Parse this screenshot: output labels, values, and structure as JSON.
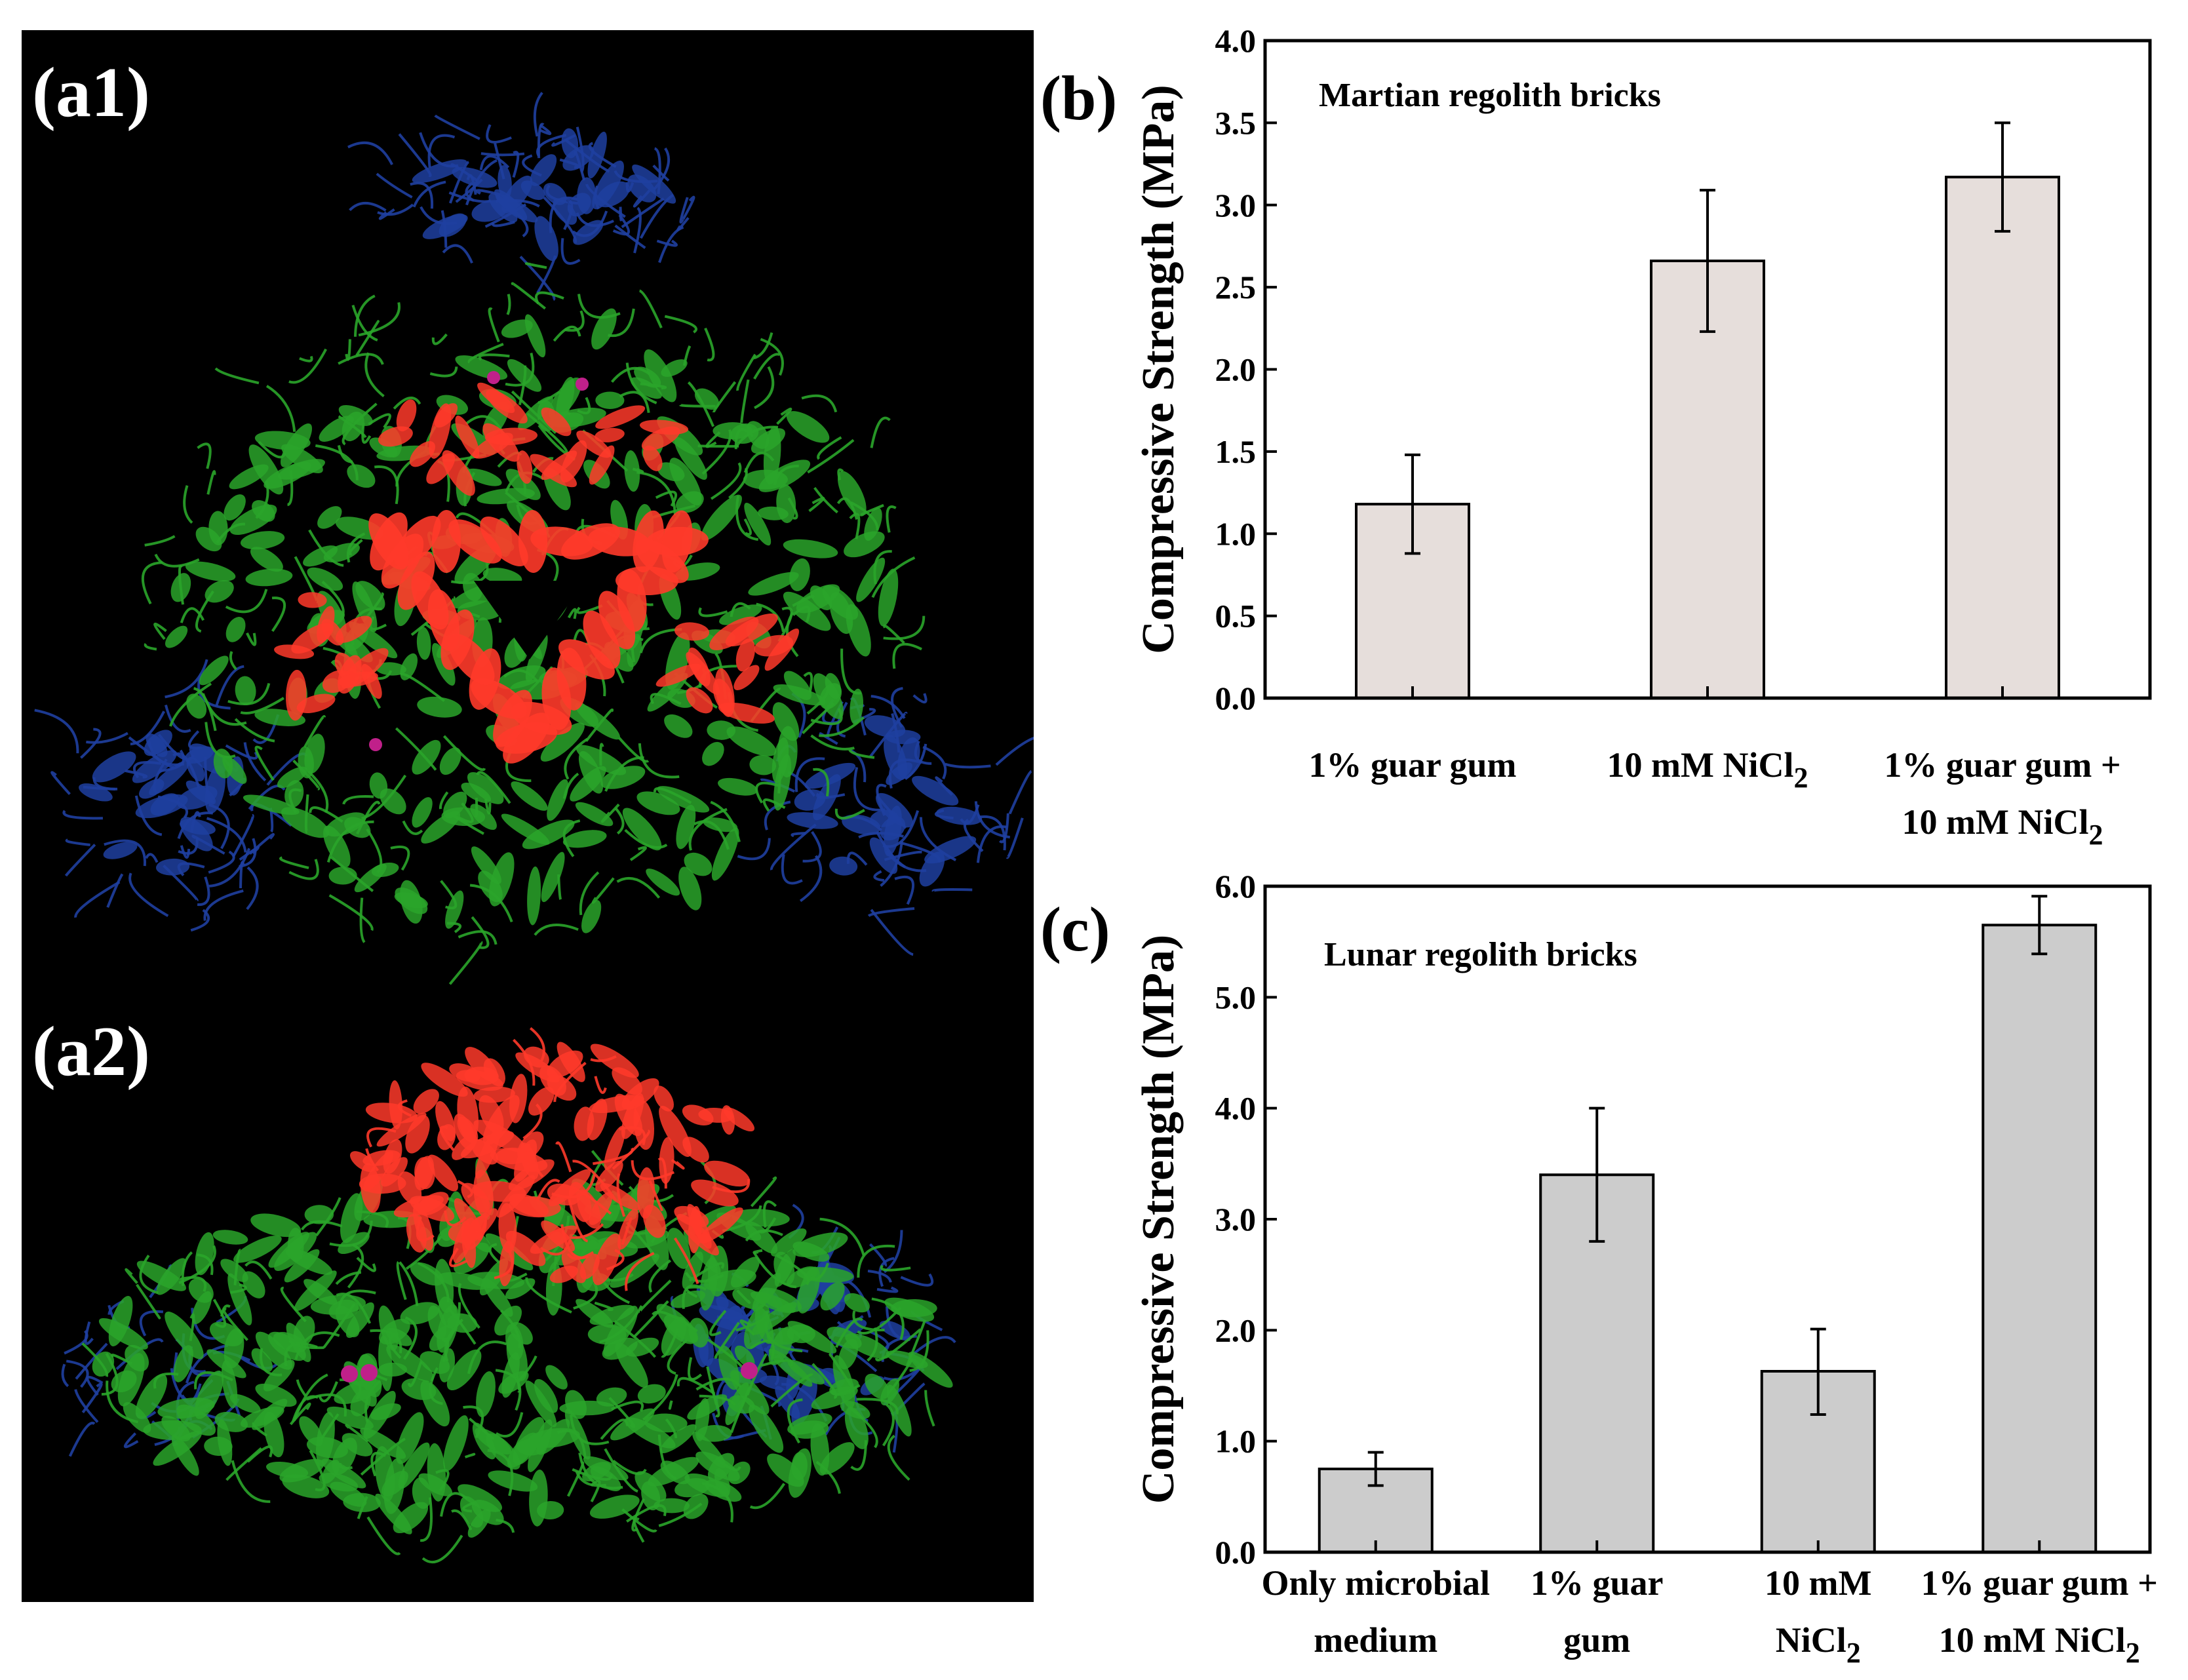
{
  "panels": {
    "a1": "(a1)",
    "a2": "(a2)",
    "b": "(b)",
    "c": "(c)"
  },
  "colors": {
    "protein_background": "#000000",
    "helix_green": "#2aa52a",
    "core_red": "#ff3a2a",
    "domain_blue": "#1f3fa0",
    "ligand_magenta": "#c0208a",
    "bar_b": "#e6dedb",
    "bar_c": "#cccccc"
  },
  "chart_data": [
    {
      "type": "bar",
      "panel": "(b)",
      "title": "Martian regolith bricks",
      "xlabel": "",
      "ylabel": "Compressive Strength (MPa)",
      "ylim": [
        0,
        4.0
      ],
      "yticks": [
        "0.0",
        "0.5",
        "1.0",
        "1.5",
        "2.0",
        "2.5",
        "3.0",
        "3.5",
        "4.0"
      ],
      "categories": [
        [
          "1% guar gum"
        ],
        [
          "10 mM NiCl",
          "2"
        ],
        [
          "1% guar gum +",
          "10 mM NiCl",
          "2"
        ]
      ],
      "category_lines": [
        [
          {
            "text": "1% guar gum",
            "sub": ""
          }
        ],
        [
          {
            "text": "10 mM NiCl",
            "sub": "2"
          }
        ],
        [
          {
            "text": "1% guar gum +",
            "sub": ""
          },
          {
            "text": "10 mM NiCl",
            "sub": "2"
          }
        ]
      ],
      "values": [
        1.18,
        2.66,
        3.17
      ],
      "error_low": [
        0.88,
        2.23,
        2.84
      ],
      "error_high": [
        1.48,
        3.09,
        3.5
      ],
      "grid": false
    },
    {
      "type": "bar",
      "panel": "(c)",
      "title": "Lunar regolith bricks",
      "xlabel": "",
      "ylabel": "Compressive Strength (MPa)",
      "ylim": [
        0,
        6.0
      ],
      "yticks": [
        "0.0",
        "1.0",
        "2.0",
        "3.0",
        "4.0",
        "5.0",
        "6.0"
      ],
      "category_lines": [
        [
          {
            "text": "Only microbial",
            "sub": ""
          },
          {
            "text": "medium",
            "sub": ""
          }
        ],
        [
          {
            "text": "1% guar",
            "sub": ""
          },
          {
            "text": "gum",
            "sub": ""
          }
        ],
        [
          {
            "text": "10 mM",
            "sub": ""
          },
          {
            "text": "NiCl",
            "sub": "2"
          }
        ],
        [
          {
            "text": "1% guar gum +",
            "sub": ""
          },
          {
            "text": "10 mM NiCl",
            "sub": "2"
          }
        ]
      ],
      "values": [
        0.75,
        3.4,
        1.63,
        5.65
      ],
      "error_low": [
        0.6,
        2.8,
        1.24,
        5.39
      ],
      "error_high": [
        0.9,
        4.0,
        2.01,
        5.91
      ],
      "grid": false
    }
  ]
}
